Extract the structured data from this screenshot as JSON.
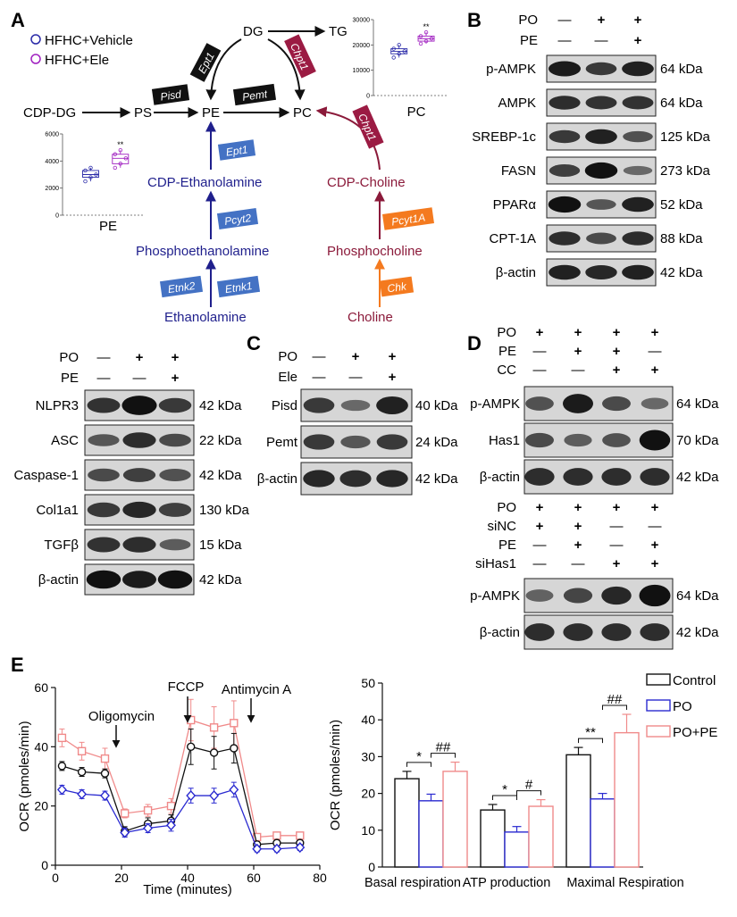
{
  "panelA": {
    "label": "A",
    "legend": [
      {
        "text": "HFHC+Vehicle",
        "color": "#2a2aa8"
      },
      {
        "text": "HFHC+Ele",
        "color": "#a020c0"
      }
    ],
    "nodes": {
      "dg": "DG",
      "tg": "TG",
      "cdpdg": "CDP-DG",
      "ps": "PS",
      "pe": "PE",
      "pc": "PC",
      "cdpeth": "CDP-Ethanolamine",
      "phosphoeth": "Phosphoethanolamine",
      "eth": "Ethanolamine",
      "cdpcho": "CDP-Choline",
      "phosphocho": "Phosphocholine",
      "cho": "Choline"
    },
    "enzymes": {
      "ept1_top": "Ept1",
      "chpt1_top": "Chpt1",
      "pisd": "Pisd",
      "pemt": "Pemt",
      "chpt1_right": "Chpt1",
      "ept1_blue": "Ept1",
      "pcyt2": "Pcyt2",
      "etnk2": "Etnk2",
      "etnk1": "Etnk1",
      "pcyt1a": "Pcyt1A",
      "chk": "Chk"
    },
    "colors": {
      "blue": "#1f1f8c",
      "crimson": "#8b1a3a",
      "enz_blue": "#4472c4",
      "enz_orange": "#f47a1f",
      "enz_black": "#111111",
      "enz_crimson": "#9b1b43"
    },
    "pe_plot": {
      "label": "PE",
      "yticks": [
        "6000",
        "4000",
        "2000",
        "0"
      ],
      "sig": "**",
      "vehicle_values": [
        2500,
        2800,
        3000,
        3300,
        3500
      ],
      "ele_values": [
        3500,
        3800,
        4200,
        4500,
        4800
      ]
    },
    "pc_plot": {
      "label": "PC",
      "yticks": [
        "30000",
        "20000",
        "10000",
        "0"
      ],
      "sig": "**",
      "vehicle_values": [
        15000,
        16500,
        17500,
        18500,
        20000
      ],
      "ele_values": [
        20500,
        21500,
        22500,
        23500,
        25000
      ]
    }
  },
  "panelB": {
    "label": "B",
    "cond": [
      {
        "name": "PO",
        "signs": [
          "—",
          "+",
          "+"
        ]
      },
      {
        "name": "PE",
        "signs": [
          "—",
          "—",
          "+"
        ]
      }
    ],
    "blots": [
      {
        "name": "p-AMPK",
        "kda": "64 kDa"
      },
      {
        "name": "AMPK",
        "kda": "64 kDa"
      },
      {
        "name": "SREBP-1c",
        "kda": "125 kDa"
      },
      {
        "name": "FASN",
        "kda": "273 kDa"
      },
      {
        "name": "PPARα",
        "kda": "52 kDa"
      },
      {
        "name": "CPT-1A",
        "kda": "88 kDa"
      },
      {
        "name": "β-actin",
        "kda": "42 kDa"
      }
    ]
  },
  "panelLeft": {
    "cond": [
      {
        "name": "PO",
        "signs": [
          "—",
          "+",
          "+"
        ]
      },
      {
        "name": "PE",
        "signs": [
          "—",
          "—",
          "+"
        ]
      }
    ],
    "blots": [
      {
        "name": "NLPR3",
        "kda": "42 kDa"
      },
      {
        "name": "ASC",
        "kda": "22 kDa"
      },
      {
        "name": "Caspase-1",
        "kda": "42 kDa"
      },
      {
        "name": "Col1a1",
        "kda": "130 kDa"
      },
      {
        "name": "TGFβ",
        "kda": "15 kDa"
      },
      {
        "name": "β-actin",
        "kda": "42 kDa"
      }
    ]
  },
  "panelC": {
    "label": "C",
    "cond": [
      {
        "name": "PO",
        "signs": [
          "—",
          "+",
          "+"
        ]
      },
      {
        "name": "Ele",
        "signs": [
          "—",
          "—",
          "+"
        ]
      }
    ],
    "blots": [
      {
        "name": "Pisd",
        "kda": "40 kDa"
      },
      {
        "name": "Pemt",
        "kda": "24 kDa"
      },
      {
        "name": "β-actin",
        "kda": "42 kDa"
      }
    ]
  },
  "panelD": {
    "label": "D",
    "top_cond": [
      {
        "name": "PO",
        "signs": [
          "+",
          "+",
          "+",
          "+"
        ]
      },
      {
        "name": "PE",
        "signs": [
          "—",
          "+",
          "+",
          "—"
        ]
      },
      {
        "name": "CC",
        "signs": [
          "—",
          "—",
          "+",
          "+"
        ]
      }
    ],
    "top_blots": [
      {
        "name": "p-AMPK",
        "kda": "64 kDa"
      },
      {
        "name": "Has1",
        "kda": "70 kDa"
      },
      {
        "name": "β-actin",
        "kda": "42 kDa"
      }
    ],
    "bot_cond": [
      {
        "name": "PO",
        "signs": [
          "+",
          "+",
          "+",
          "+"
        ]
      },
      {
        "name": "siNC",
        "signs": [
          "+",
          "+",
          "—",
          "—"
        ]
      },
      {
        "name": "PE",
        "signs": [
          "—",
          "+",
          "—",
          "+"
        ]
      },
      {
        "name": "siHas1",
        "signs": [
          "—",
          "—",
          "+",
          "+"
        ]
      }
    ],
    "bot_blots": [
      {
        "name": "p-AMPK",
        "kda": "64 kDa"
      },
      {
        "name": "β-actin",
        "kda": "42 kDa"
      }
    ]
  },
  "panelE": {
    "label": "E",
    "colors": {
      "control": "#111111",
      "po": "#2a2ad0",
      "pope": "#f08a8a"
    },
    "line": {
      "ylabel": "OCR (pmoles/min)",
      "xlabel": "Time (minutes)",
      "xticks": [
        "0",
        "20",
        "40",
        "60",
        "80"
      ],
      "yticks": [
        "0",
        "20",
        "40",
        "60"
      ],
      "xlim": [
        0,
        80
      ],
      "ylim": [
        0,
        60
      ],
      "annotations": [
        {
          "text": "Oligomycin",
          "x": 18
        },
        {
          "text": "FCCP",
          "x": 40
        },
        {
          "text": "Antimycin A",
          "x": 57
        }
      ],
      "x": [
        2,
        8,
        15,
        21,
        28,
        35,
        41,
        48,
        54,
        61,
        67,
        74
      ],
      "control": [
        33.5,
        31.5,
        31,
        11.5,
        14,
        15,
        40,
        38,
        39.5,
        7,
        7.5,
        7.5
      ],
      "po": [
        25.5,
        24,
        23.5,
        11,
        12.5,
        13.5,
        23.5,
        23.5,
        25.5,
        5.5,
        5.5,
        6
      ],
      "pope": [
        43,
        38.5,
        36,
        17.5,
        18.5,
        20,
        49,
        46.5,
        48,
        9.5,
        10,
        10
      ],
      "control_err": [
        1.5,
        1.5,
        1.5,
        1.5,
        2,
        2,
        6,
        5.5,
        5,
        1,
        1,
        1
      ],
      "po_err": [
        1.5,
        1.5,
        1.5,
        1.5,
        1.5,
        2,
        2.5,
        2.5,
        2.5,
        1,
        1,
        1
      ],
      "pope_err": [
        3,
        3,
        3.5,
        1.5,
        2,
        2.5,
        7,
        7,
        7.5,
        1,
        1,
        1
      ]
    },
    "bar": {
      "ylabel": "OCR (pmoles/min)",
      "yticks": [
        "0",
        "10",
        "20",
        "30",
        "40",
        "50"
      ],
      "ylim": [
        0,
        50
      ],
      "categories": [
        "Basal respiration",
        "ATP production",
        "Maximal Respiration"
      ],
      "series": [
        {
          "name": "Control",
          "values": [
            24,
            15.5,
            30.5
          ],
          "err": [
            2,
            1.5,
            2
          ]
        },
        {
          "name": "PO",
          "values": [
            18,
            9.5,
            18.5
          ],
          "err": [
            1.8,
            1.5,
            1.5
          ]
        },
        {
          "name": "PO+PE",
          "values": [
            26,
            16.5,
            36.5
          ],
          "err": [
            2.5,
            1.8,
            5
          ]
        }
      ],
      "sig": [
        {
          "cat": 0,
          "pair": [
            0,
            1
          ],
          "text": "*"
        },
        {
          "cat": 0,
          "pair": [
            1,
            2
          ],
          "text": "##"
        },
        {
          "cat": 1,
          "pair": [
            0,
            1
          ],
          "text": "*"
        },
        {
          "cat": 1,
          "pair": [
            1,
            2
          ],
          "text": "#"
        },
        {
          "cat": 2,
          "pair": [
            0,
            1
          ],
          "text": "**"
        },
        {
          "cat": 2,
          "pair": [
            1,
            2
          ],
          "text": "##"
        }
      ]
    }
  }
}
